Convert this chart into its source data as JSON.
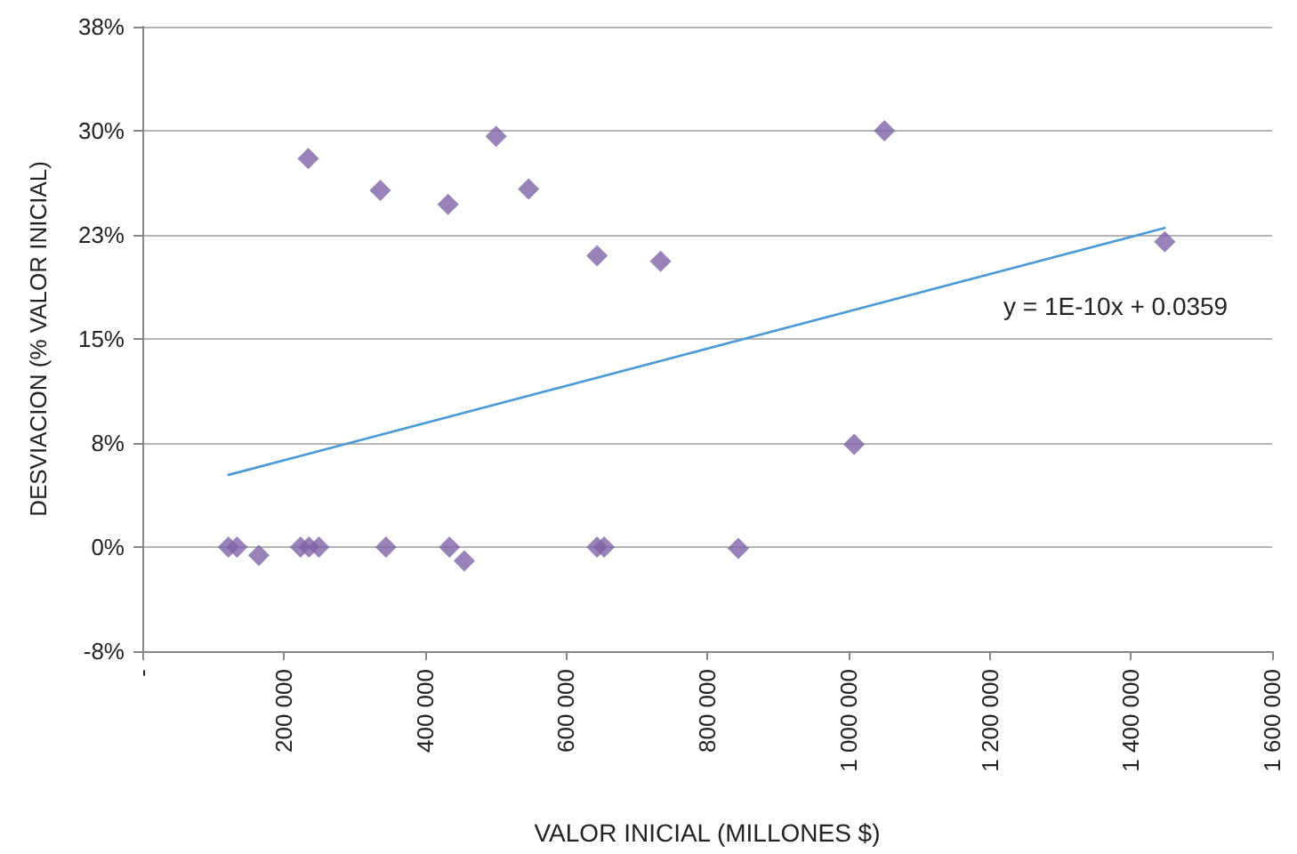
{
  "chart_data": {
    "type": "scatter",
    "xlabel": "VALOR INICIAL (MILLONES $)",
    "ylabel": "DESVIACION (% VALOR INICIAL)",
    "xlim": [
      0,
      1600000
    ],
    "xticks": [
      {
        "value": 0,
        "label": "-"
      },
      {
        "value": 200000,
        "label": "200 000"
      },
      {
        "value": 400000,
        "label": "400 000"
      },
      {
        "value": 600000,
        "label": "600 000"
      },
      {
        "value": 800000,
        "label": "800 000"
      },
      {
        "value": 1000000,
        "label": "1 000 000"
      },
      {
        "value": 1200000,
        "label": "1 200 000"
      },
      {
        "value": 1400000,
        "label": "1 400 000"
      },
      {
        "value": 1600000,
        "label": "1 600 000"
      }
    ],
    "ylim": [
      -7.5,
      37.5
    ],
    "yticks": [
      {
        "value": -7.5,
        "label": "-8%"
      },
      {
        "value": 0,
        "label": "0%"
      },
      {
        "value": 7.5,
        "label": "8%"
      },
      {
        "value": 15,
        "label": "15%"
      },
      {
        "value": 22.5,
        "label": "23%"
      },
      {
        "value": 30,
        "label": "30%"
      },
      {
        "value": 37.5,
        "label": "38%"
      }
    ],
    "grid": "y",
    "marker": "diamond",
    "series": [
      {
        "color": "#7f62a8",
        "x": [
          122000,
          134000,
          165000,
          224000,
          235000,
          236000,
          250000,
          337000,
          345000,
          433000,
          435000,
          456000,
          501000,
          547000,
          644000,
          644000,
          654000,
          734000,
          844000,
          1008000,
          1051000,
          1448000
        ],
        "values": [
          0,
          0,
          -0.6,
          0,
          28.0,
          0,
          0,
          25.7,
          0,
          24.7,
          0,
          -1.0,
          29.6,
          25.8,
          21.0,
          0,
          0,
          20.6,
          -0.1,
          7.4,
          30.0,
          22.0
        ]
      },
      {
        "type": "line",
        "color": "#4a9ad8",
        "marker": "none",
        "x": [
          122000,
          1448000
        ],
        "values": [
          5.2,
          23.0
        ]
      }
    ],
    "annotations": [
      "y = 1E-10x + 0.0359"
    ]
  }
}
